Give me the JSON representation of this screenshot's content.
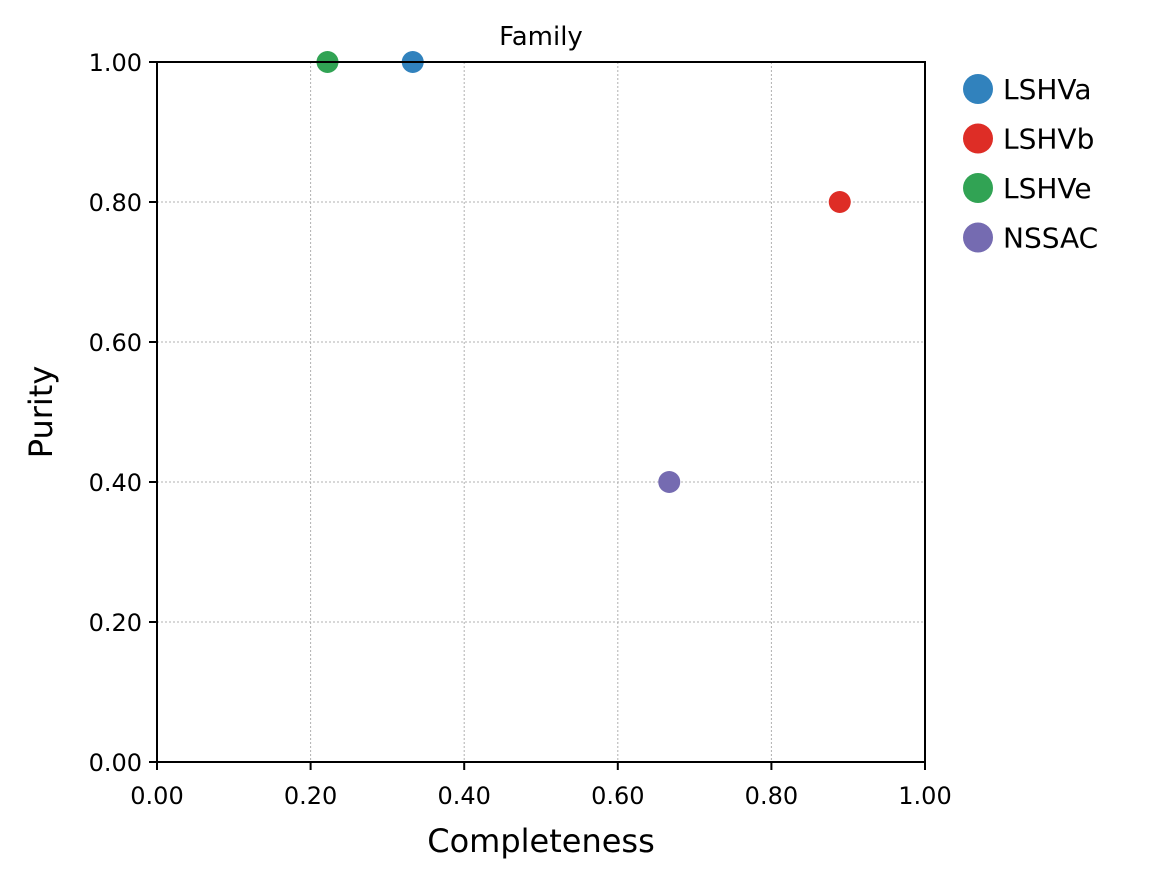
{
  "chart_data": {
    "type": "scatter",
    "title": "Family",
    "xlabel": "Completeness",
    "ylabel": "Purity",
    "xlim": [
      0,
      1
    ],
    "ylim": [
      0,
      1
    ],
    "x_ticks": [
      "0.00",
      "0.20",
      "0.40",
      "0.60",
      "0.80",
      "1.00"
    ],
    "y_ticks": [
      "0.00",
      "0.20",
      "0.40",
      "0.60",
      "0.80",
      "1.00"
    ],
    "grid": true,
    "legend_position": "outside-top-right",
    "series": [
      {
        "name": "LSHVa",
        "color": "#3182bd",
        "x": 0.333,
        "y": 1.0
      },
      {
        "name": "LSHVb",
        "color": "#de2d26",
        "x": 0.889,
        "y": 0.8
      },
      {
        "name": "LSHVe",
        "color": "#31a354",
        "x": 0.222,
        "y": 1.0
      },
      {
        "name": "NSSAC",
        "color": "#756bb1",
        "x": 0.667,
        "y": 0.4
      }
    ]
  }
}
